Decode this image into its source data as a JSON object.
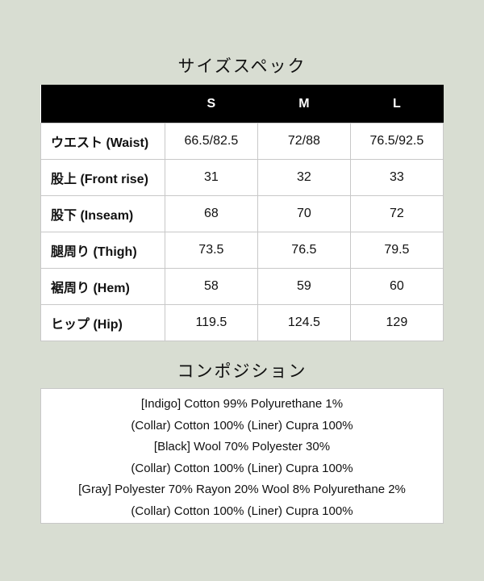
{
  "size_spec": {
    "title": "サイズスペック",
    "headers": [
      "",
      "S",
      "M",
      "L"
    ],
    "rows": [
      {
        "label": "ウエスト (Waist)",
        "values": [
          "66.5/82.5",
          "72/88",
          "76.5/92.5"
        ]
      },
      {
        "label": "股上 (Front rise)",
        "values": [
          "31",
          "32",
          "33"
        ]
      },
      {
        "label": "股下 (Inseam)",
        "values": [
          "68",
          "70",
          "72"
        ]
      },
      {
        "label": "腿周り (Thigh)",
        "values": [
          "73.5",
          "76.5",
          "79.5"
        ]
      },
      {
        "label": "裾周り (Hem)",
        "values": [
          "58",
          "59",
          "60"
        ]
      },
      {
        "label": "ヒップ (Hip)",
        "values": [
          "119.5",
          "124.5",
          "129"
        ]
      }
    ]
  },
  "composition": {
    "title": "コンポジション",
    "lines": [
      "[Indigo] Cotton 99% Polyurethane 1%",
      "(Collar) Cotton 100% (Liner) Cupra 100%",
      "[Black] Wool 70% Polyester 30%",
      "(Collar) Cotton 100% (Liner) Cupra 100%",
      "[Gray] Polyester 70% Rayon 20% Wool 8% Polyurethane 2%",
      "(Collar) Cotton 100% (Liner) Cupra 100%"
    ]
  }
}
